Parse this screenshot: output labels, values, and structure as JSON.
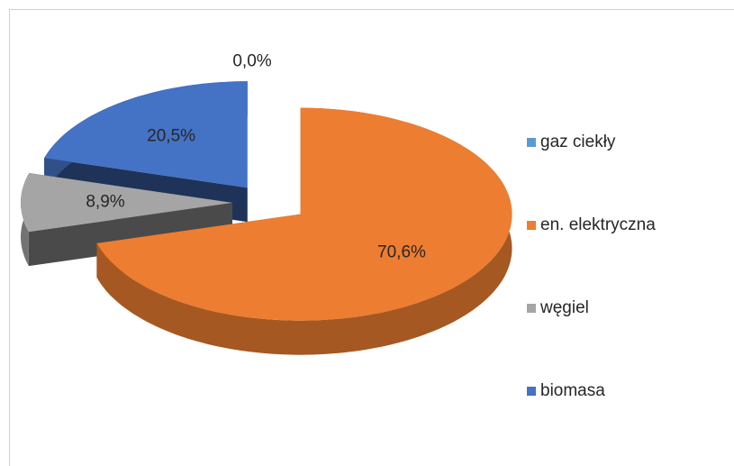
{
  "chart_data": {
    "type": "pie",
    "categories": [
      "gaz ciekły",
      "en. elektryczna",
      "węgiel",
      "biomasa"
    ],
    "values": [
      0.0,
      70.6,
      8.9,
      20.5
    ],
    "value_labels": [
      "0,0%",
      "70,6%",
      "8,9%",
      "20,5%"
    ],
    "colors": [
      "#5b9bd5",
      "#ed7d31",
      "#a5a5a5",
      "#4472c4"
    ],
    "legend": "right"
  }
}
